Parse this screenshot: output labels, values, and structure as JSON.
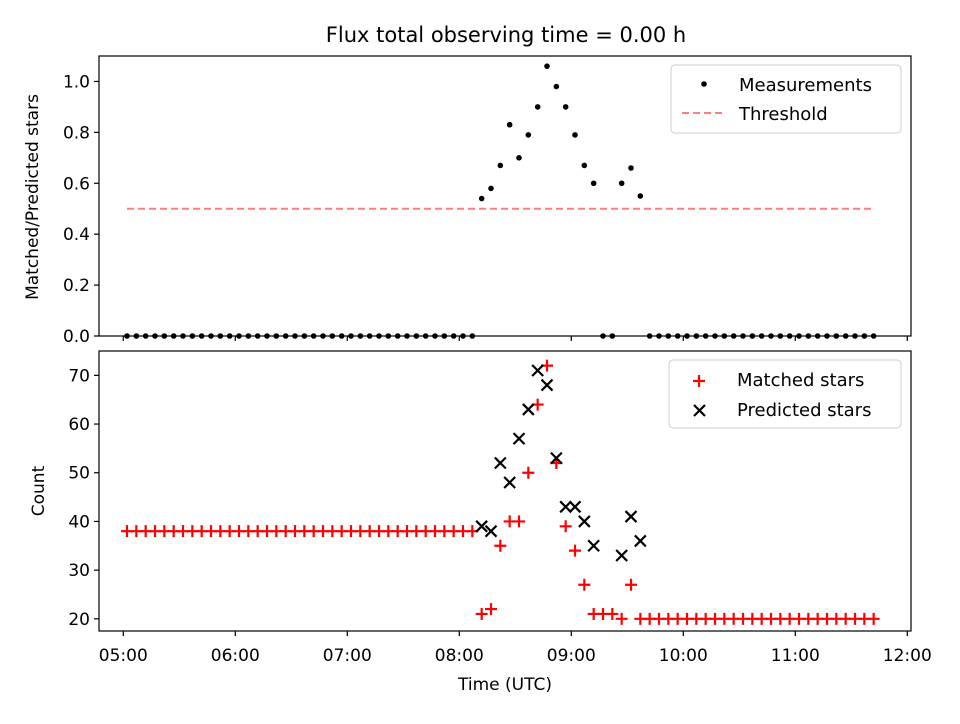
{
  "chart_data": [
    {
      "type": "scatter",
      "title": "Flux total observing time = 0.00 h",
      "xlabel": "",
      "ylabel": "Matched/Predicted stars",
      "ylim": [
        0,
        1.1
      ],
      "xlim": [
        "04:47",
        "12:02"
      ],
      "yticks": [
        "0.0",
        "0.2",
        "0.4",
        "0.6",
        "0.8",
        "1.0"
      ],
      "grid": false,
      "legend": {
        "position": "top-right",
        "entries": [
          "Measurements",
          "Threshold"
        ]
      },
      "series": [
        {
          "name": "Measurements",
          "marker": "dot",
          "color": "#000000",
          "x": [
            "05:02",
            "05:07",
            "05:12",
            "05:17",
            "05:22",
            "05:27",
            "05:32",
            "05:37",
            "05:42",
            "05:47",
            "05:52",
            "05:57",
            "06:02",
            "06:07",
            "06:12",
            "06:17",
            "06:22",
            "06:27",
            "06:32",
            "06:37",
            "06:42",
            "06:47",
            "06:52",
            "06:57",
            "07:02",
            "07:07",
            "07:12",
            "07:17",
            "07:22",
            "07:27",
            "07:32",
            "07:37",
            "07:42",
            "07:47",
            "07:52",
            "07:57",
            "08:02",
            "08:07",
            "08:12",
            "08:17",
            "08:22",
            "08:27",
            "08:32",
            "08:37",
            "08:42",
            "08:47",
            "08:52",
            "08:57",
            "09:02",
            "09:07",
            "09:12",
            "09:17",
            "09:22",
            "09:27",
            "09:32",
            "09:37",
            "09:42",
            "09:47",
            "09:52",
            "09:57",
            "10:02",
            "10:07",
            "10:12",
            "10:17",
            "10:22",
            "10:27",
            "10:32",
            "10:37",
            "10:42",
            "10:47",
            "10:52",
            "10:57",
            "11:02",
            "11:07",
            "11:12",
            "11:17",
            "11:22",
            "11:27",
            "11:32",
            "11:37",
            "11:42"
          ],
          "y": [
            0,
            0,
            0,
            0,
            0,
            0,
            0,
            0,
            0,
            0,
            0,
            0,
            0,
            0,
            0,
            0,
            0,
            0,
            0,
            0,
            0,
            0,
            0,
            0,
            0,
            0,
            0,
            0,
            0,
            0,
            0,
            0,
            0,
            0,
            0,
            0,
            0,
            0,
            0.54,
            0.58,
            0.67,
            0.83,
            0.7,
            0.79,
            0.9,
            1.06,
            0.98,
            0.9,
            0.79,
            0.67,
            0.6,
            0,
            0,
            0.6,
            0.66,
            0.55,
            0,
            0,
            0,
            0,
            0,
            0,
            0,
            0,
            0,
            0,
            0,
            0,
            0,
            0,
            0,
            0,
            0,
            0,
            0,
            0,
            0,
            0,
            0,
            0,
            0
          ]
        },
        {
          "name": "Threshold",
          "type": "line",
          "style": "dashed",
          "color": "#ff7f7f",
          "x": [
            "05:02",
            "11:42"
          ],
          "y": [
            0.5,
            0.5
          ]
        }
      ]
    },
    {
      "type": "scatter",
      "title": "",
      "xlabel": "Time (UTC)",
      "ylabel": "Count",
      "ylim": [
        17.5,
        75
      ],
      "xlim": [
        "04:47",
        "12:02"
      ],
      "xticks": [
        "05:00",
        "06:00",
        "07:00",
        "08:00",
        "09:00",
        "10:00",
        "11:00",
        "12:00"
      ],
      "yticks": [
        "20",
        "30",
        "40",
        "50",
        "60",
        "70"
      ],
      "grid": false,
      "legend": {
        "position": "top-right",
        "entries": [
          "Matched stars",
          "Predicted stars"
        ]
      },
      "series": [
        {
          "name": "Matched stars",
          "marker": "plus",
          "color": "#ff0000",
          "x": [
            "05:02",
            "05:07",
            "05:12",
            "05:17",
            "05:22",
            "05:27",
            "05:32",
            "05:37",
            "05:42",
            "05:47",
            "05:52",
            "05:57",
            "06:02",
            "06:07",
            "06:12",
            "06:17",
            "06:22",
            "06:27",
            "06:32",
            "06:37",
            "06:42",
            "06:47",
            "06:52",
            "06:57",
            "07:02",
            "07:07",
            "07:12",
            "07:17",
            "07:22",
            "07:27",
            "07:32",
            "07:37",
            "07:42",
            "07:47",
            "07:52",
            "07:57",
            "08:02",
            "08:07",
            "08:12",
            "08:17",
            "08:22",
            "08:27",
            "08:32",
            "08:37",
            "08:42",
            "08:47",
            "08:52",
            "08:57",
            "09:02",
            "09:07",
            "09:12",
            "09:17",
            "09:22",
            "09:27",
            "09:32",
            "09:37",
            "09:42",
            "09:47",
            "09:52",
            "09:57",
            "10:02",
            "10:07",
            "10:12",
            "10:17",
            "10:22",
            "10:27",
            "10:32",
            "10:37",
            "10:42",
            "10:47",
            "10:52",
            "10:57",
            "11:02",
            "11:07",
            "11:12",
            "11:17",
            "11:22",
            "11:27",
            "11:32",
            "11:37",
            "11:42"
          ],
          "y": [
            38,
            38,
            38,
            38,
            38,
            38,
            38,
            38,
            38,
            38,
            38,
            38,
            38,
            38,
            38,
            38,
            38,
            38,
            38,
            38,
            38,
            38,
            38,
            38,
            38,
            38,
            38,
            38,
            38,
            38,
            38,
            38,
            38,
            38,
            38,
            38,
            38,
            38,
            21,
            22,
            35,
            40,
            40,
            50,
            64,
            72,
            52,
            39,
            34,
            27,
            21,
            21,
            21,
            20,
            27,
            20,
            20,
            20,
            20,
            20,
            20,
            20,
            20,
            20,
            20,
            20,
            20,
            20,
            20,
            20,
            20,
            20,
            20,
            20,
            20,
            20,
            20,
            20,
            20,
            20,
            20
          ]
        },
        {
          "name": "Predicted stars",
          "marker": "x",
          "color": "#000000",
          "x": [
            "08:12",
            "08:17",
            "08:22",
            "08:27",
            "08:32",
            "08:37",
            "08:42",
            "08:47",
            "08:52",
            "08:57",
            "09:02",
            "09:07",
            "09:12",
            "09:27",
            "09:32",
            "09:37"
          ],
          "y": [
            39,
            38,
            52,
            48,
            57,
            63,
            71,
            68,
            53,
            43,
            43,
            40,
            35,
            33,
            41,
            36
          ]
        }
      ]
    }
  ]
}
